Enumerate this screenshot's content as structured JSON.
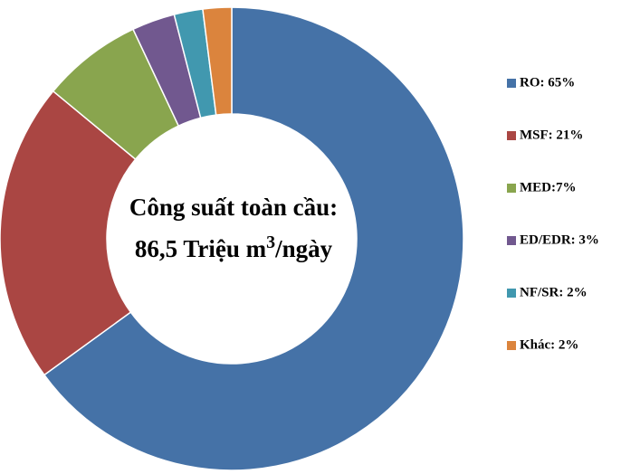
{
  "chart_data": {
    "type": "donut",
    "categories": [
      "RO: 65%",
      "MSF: 21%",
      "MED:7%",
      "ED/EDR: 3%",
      "NF/SR: 2%",
      "Khác: 2%"
    ],
    "values": [
      65,
      21,
      7,
      3,
      2,
      2
    ],
    "colors": [
      "#4572a7",
      "#aa4643",
      "#89a54e",
      "#71588f",
      "#4198af",
      "#db843d"
    ],
    "center_text": {
      "line1": "Công suất toàn cầu:",
      "line2": "86,5 Triệu m",
      "superscript": "3",
      "line2_end": "/ngày"
    },
    "legend": "right"
  }
}
